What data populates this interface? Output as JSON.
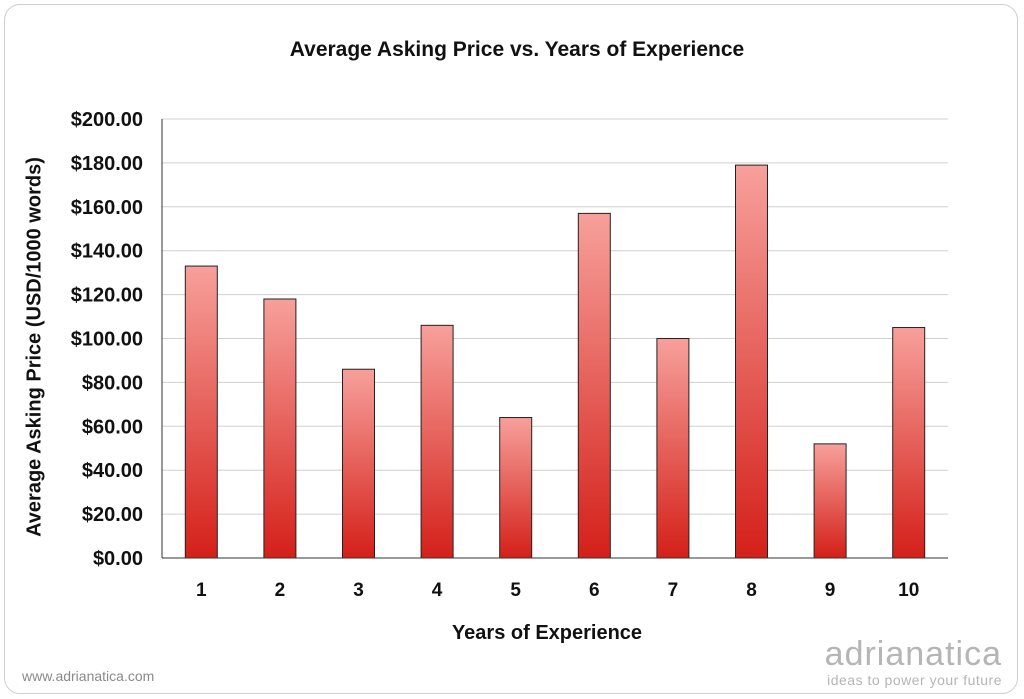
{
  "chart_data": {
    "type": "bar",
    "title": "Average Asking Price vs. Years of Experience",
    "xlabel": "Years of Experience",
    "ylabel": "Average Asking Price (USD/1000 words)",
    "categories": [
      "1",
      "2",
      "3",
      "4",
      "5",
      "6",
      "7",
      "8",
      "9",
      "10"
    ],
    "values": [
      133,
      118,
      86,
      106,
      64,
      157,
      100,
      179,
      52,
      105
    ],
    "ylim": [
      0,
      200
    ],
    "yticks": [
      "$0.00",
      "$20.00",
      "$40.00",
      "$60.00",
      "$80.00",
      "$100.00",
      "$120.00",
      "$140.00",
      "$160.00",
      "$180.00",
      "$200.00"
    ],
    "ytick_values": [
      0,
      20,
      40,
      60,
      80,
      100,
      120,
      140,
      160,
      180,
      200
    ],
    "grid": true,
    "bar_gradient_top": "#f7a09b",
    "bar_gradient_bottom": "#d42019",
    "bar_outline": "#222222",
    "gridline_color": "#d0d0d0"
  },
  "footer": {
    "site": "www.adrianatica.com",
    "brand_name": "adrianatica",
    "brand_tagline": "ideas to power your future"
  }
}
